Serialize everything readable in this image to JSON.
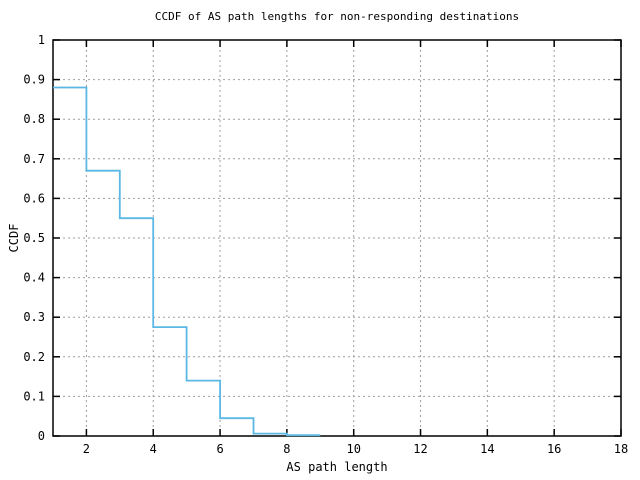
{
  "chart_data": {
    "type": "line",
    "subtype": "step-post",
    "title": "CCDF of AS path lengths for non-responding destinations",
    "xlabel": "AS path length",
    "ylabel": "CCDF",
    "xlim": [
      1,
      18
    ],
    "ylim": [
      0,
      1
    ],
    "x_ticks": [
      2,
      4,
      6,
      8,
      10,
      12,
      14,
      16,
      18
    ],
    "x_tick_labels": [
      "2",
      "4",
      "6",
      "8",
      "10",
      "12",
      "14",
      "16",
      "18"
    ],
    "y_ticks": [
      0,
      0.1,
      0.2,
      0.3,
      0.4,
      0.5,
      0.6,
      0.7,
      0.8,
      0.9,
      1
    ],
    "y_tick_labels": [
      "0",
      "0.1",
      "0.2",
      "0.3",
      "0.4",
      "0.5",
      "0.6",
      "0.7",
      "0.8",
      "0.9",
      "1"
    ],
    "grid": "dashed",
    "grid_color": "#9e9e9e",
    "border_color": "#000000",
    "line_color": "#5bb8e4",
    "legend": "none",
    "series": [
      {
        "name": "CCDF of AS path lengths",
        "step": "post",
        "x": [
          1,
          2,
          3,
          4,
          5,
          6,
          7,
          8,
          9
        ],
        "y": [
          0.88,
          0.67,
          0.55,
          0.275,
          0.14,
          0.045,
          0.006,
          0.002,
          0.002
        ]
      }
    ]
  }
}
